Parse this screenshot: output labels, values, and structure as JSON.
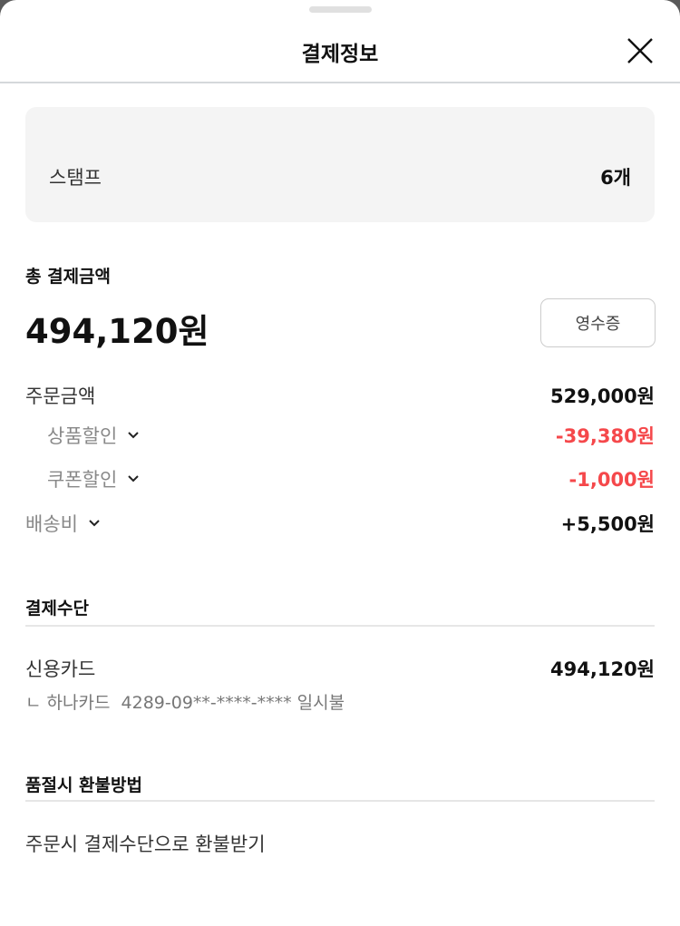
{
  "header": {
    "title": "결제정보",
    "close_icon": "close-icon"
  },
  "stamp": {
    "label": "스탬프",
    "value": "6개"
  },
  "total": {
    "label": "총 결제금액",
    "amount": "494,120원",
    "receipt_button": "영수증"
  },
  "breakdown": [
    {
      "label": "주문금액",
      "value": "529,000원",
      "style": "normal",
      "chevron": false
    },
    {
      "label": "상품할인",
      "value": "-39,380원",
      "style": "discount",
      "chevron": true
    },
    {
      "label": "쿠폰할인",
      "value": "-1,000원",
      "style": "discount",
      "chevron": true
    },
    {
      "label": "배송비",
      "value": "+5,500원",
      "style": "normal",
      "chevron": true
    }
  ],
  "payment_method": {
    "heading": "결제수단",
    "method": "신용카드",
    "amount": "494,120원",
    "detail": "ㄴ 하나카드  4289-09**-****-**** 일시불"
  },
  "refund": {
    "heading": "품절시 환불방법",
    "text": "주문시 결제수단으로 환불받기"
  },
  "colors": {
    "discount": "#f5484b",
    "stamp_bg": "#f4f4f4"
  }
}
